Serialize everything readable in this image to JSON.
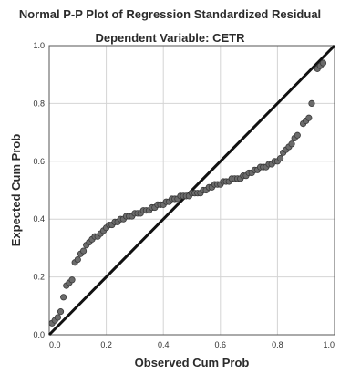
{
  "chart_data": {
    "type": "scatter",
    "title": "Normal P-P Plot of Regression Standardized Residual",
    "subtitle": "Dependent Variable: CETR",
    "xlabel": "Observed Cum Prob",
    "ylabel": "Expected Cum Prob",
    "xlim": [
      0,
      1
    ],
    "ylim": [
      0,
      1
    ],
    "x_ticks": [
      "0.0",
      "0.2",
      "0.4",
      "0.6",
      "0.8",
      "1.0"
    ],
    "y_ticks": [
      "0.0",
      "0.2",
      "0.4",
      "0.6",
      "0.8",
      "1.0"
    ],
    "grid": true,
    "reference_line": {
      "x": [
        0,
        1
      ],
      "y": [
        0,
        1
      ]
    },
    "series": [
      {
        "points": [
          [
            0.01,
            0.04
          ],
          [
            0.02,
            0.05
          ],
          [
            0.03,
            0.06
          ],
          [
            0.04,
            0.08
          ],
          [
            0.05,
            0.13
          ],
          [
            0.06,
            0.17
          ],
          [
            0.07,
            0.18
          ],
          [
            0.08,
            0.19
          ],
          [
            0.09,
            0.25
          ],
          [
            0.1,
            0.26
          ],
          [
            0.11,
            0.28
          ],
          [
            0.12,
            0.29
          ],
          [
            0.13,
            0.31
          ],
          [
            0.14,
            0.32
          ],
          [
            0.15,
            0.33
          ],
          [
            0.16,
            0.34
          ],
          [
            0.17,
            0.34
          ],
          [
            0.18,
            0.35
          ],
          [
            0.19,
            0.36
          ],
          [
            0.2,
            0.37
          ],
          [
            0.21,
            0.38
          ],
          [
            0.22,
            0.38
          ],
          [
            0.23,
            0.39
          ],
          [
            0.24,
            0.39
          ],
          [
            0.25,
            0.4
          ],
          [
            0.26,
            0.4
          ],
          [
            0.27,
            0.41
          ],
          [
            0.28,
            0.41
          ],
          [
            0.29,
            0.41
          ],
          [
            0.3,
            0.42
          ],
          [
            0.31,
            0.42
          ],
          [
            0.32,
            0.42
          ],
          [
            0.33,
            0.43
          ],
          [
            0.34,
            0.43
          ],
          [
            0.35,
            0.43
          ],
          [
            0.36,
            0.44
          ],
          [
            0.37,
            0.44
          ],
          [
            0.38,
            0.45
          ],
          [
            0.39,
            0.45
          ],
          [
            0.4,
            0.45
          ],
          [
            0.41,
            0.46
          ],
          [
            0.42,
            0.46
          ],
          [
            0.43,
            0.47
          ],
          [
            0.44,
            0.47
          ],
          [
            0.45,
            0.47
          ],
          [
            0.46,
            0.48
          ],
          [
            0.47,
            0.48
          ],
          [
            0.48,
            0.48
          ],
          [
            0.49,
            0.48
          ],
          [
            0.5,
            0.49
          ],
          [
            0.51,
            0.49
          ],
          [
            0.52,
            0.49
          ],
          [
            0.53,
            0.49
          ],
          [
            0.54,
            0.5
          ],
          [
            0.55,
            0.5
          ],
          [
            0.56,
            0.51
          ],
          [
            0.57,
            0.51
          ],
          [
            0.58,
            0.52
          ],
          [
            0.59,
            0.52
          ],
          [
            0.6,
            0.52
          ],
          [
            0.61,
            0.53
          ],
          [
            0.62,
            0.53
          ],
          [
            0.63,
            0.53
          ],
          [
            0.64,
            0.54
          ],
          [
            0.65,
            0.54
          ],
          [
            0.66,
            0.54
          ],
          [
            0.67,
            0.54
          ],
          [
            0.68,
            0.55
          ],
          [
            0.69,
            0.55
          ],
          [
            0.7,
            0.56
          ],
          [
            0.71,
            0.56
          ],
          [
            0.72,
            0.57
          ],
          [
            0.73,
            0.57
          ],
          [
            0.74,
            0.58
          ],
          [
            0.75,
            0.58
          ],
          [
            0.76,
            0.58
          ],
          [
            0.77,
            0.59
          ],
          [
            0.78,
            0.59
          ],
          [
            0.79,
            0.6
          ],
          [
            0.8,
            0.6
          ],
          [
            0.81,
            0.61
          ],
          [
            0.82,
            0.63
          ],
          [
            0.83,
            0.64
          ],
          [
            0.84,
            0.65
          ],
          [
            0.85,
            0.66
          ],
          [
            0.86,
            0.68
          ],
          [
            0.87,
            0.69
          ],
          [
            0.89,
            0.73
          ],
          [
            0.9,
            0.74
          ],
          [
            0.91,
            0.75
          ],
          [
            0.92,
            0.8
          ],
          [
            0.94,
            0.92
          ],
          [
            0.95,
            0.93
          ],
          [
            0.96,
            0.94
          ]
        ]
      }
    ]
  },
  "colors": {
    "marker_fill": "#6b6b6b",
    "marker_stroke": "#3a3a3a",
    "reference_line": "#111111",
    "grid": "#d4d4d4",
    "axis": "#555555"
  }
}
